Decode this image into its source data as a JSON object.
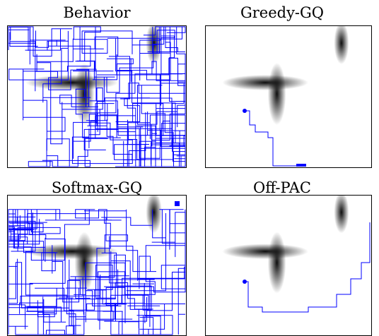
{
  "panels": [
    {
      "id": "behavior",
      "title": "Behavior",
      "trajectory": "dense-random"
    },
    {
      "id": "greedy_gq",
      "title": "Greedy-GQ",
      "trajectory": "sparse-path"
    },
    {
      "id": "softmax_gq",
      "title": "Softmax-GQ",
      "trajectory": "dense-lower"
    },
    {
      "id": "off_pac",
      "title": "Off-PAC",
      "trajectory": "sparse-path-right"
    }
  ],
  "colors": {
    "trajectory": "#0000ff",
    "obstacle": "#000000",
    "frame": "#000000"
  }
}
